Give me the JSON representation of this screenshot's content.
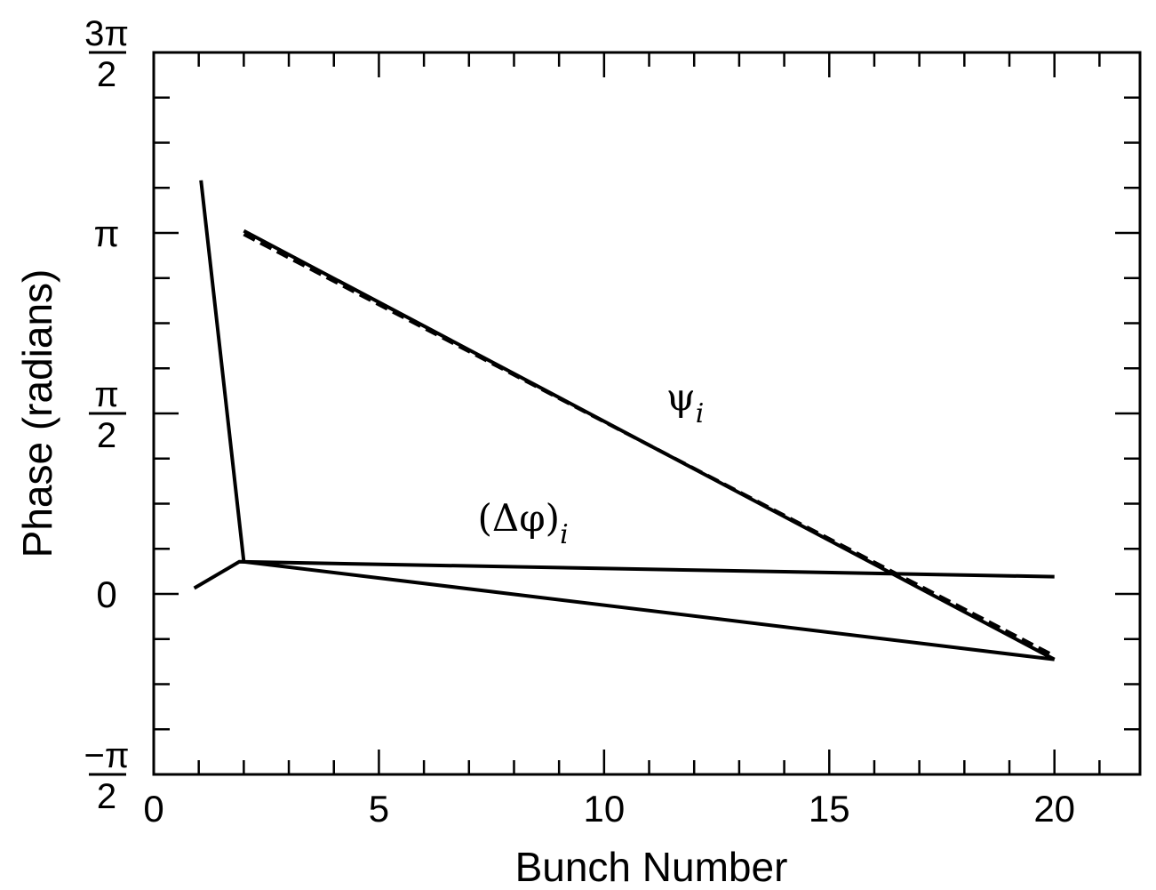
{
  "chart_data": {
    "type": "line",
    "title": "",
    "xlabel": "Bunch Number",
    "ylabel": "Phase (radians)",
    "xlim": [
      0,
      21.9
    ],
    "ylim": [
      -1.5708,
      4.7124
    ],
    "x_ticks_major": [
      {
        "value": 0,
        "label": "0"
      },
      {
        "value": 5,
        "label": "5"
      },
      {
        "value": 10,
        "label": "10"
      },
      {
        "value": 15,
        "label": "15"
      },
      {
        "value": 20,
        "label": "20"
      }
    ],
    "y_ticks_major": [
      {
        "value": -1.5708,
        "numerator": "−π",
        "denominator": "2"
      },
      {
        "value": 0,
        "label": "0"
      },
      {
        "value": 1.5708,
        "numerator": "π",
        "denominator": "2"
      },
      {
        "value": 3.1416,
        "label": "π"
      },
      {
        "value": 4.7124,
        "numerator": "3π",
        "denominator": "2"
      }
    ],
    "series": [
      {
        "name": "(Δφ)ᵢ",
        "style": "solid",
        "x": [
          0.9,
          1.9,
          20
        ],
        "y": [
          0.05,
          0.28,
          0.15
        ]
      },
      {
        "name": "ψᵢ",
        "style": "solid",
        "x": [
          1.05,
          2.0,
          20
        ],
        "y": [
          3.6,
          0.28,
          -0.57
        ]
      },
      {
        "name": "ψᵢ",
        "style": "solid",
        "x": [
          2.0,
          20
        ],
        "y": [
          3.16,
          -0.57
        ]
      },
      {
        "name": "",
        "style": "dashed",
        "x": [
          2.0,
          20
        ],
        "y": [
          3.13,
          -0.54
        ]
      }
    ],
    "annotations": [
      {
        "text": "ψ",
        "subscript": "i",
        "x": 11.8,
        "y": 1.6
      },
      {
        "text": "(Δφ)",
        "subscript": "i",
        "x": 8.2,
        "y": 0.55
      }
    ],
    "grid": false,
    "legend": "none"
  }
}
